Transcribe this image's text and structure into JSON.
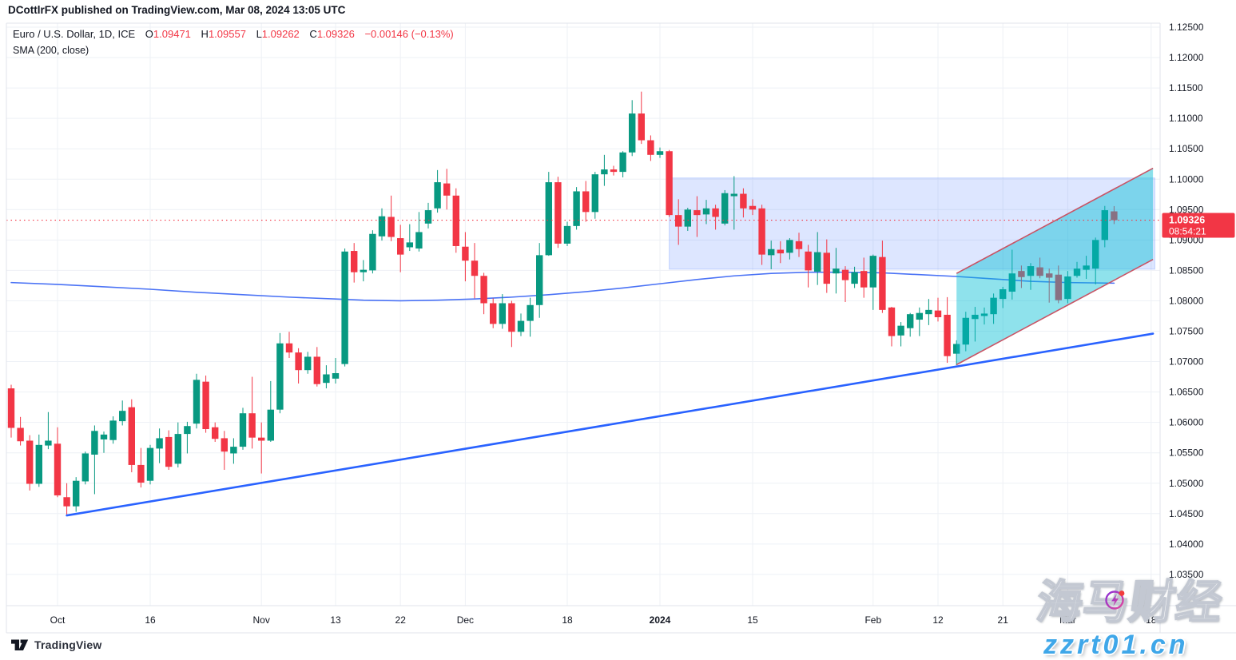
{
  "header": {
    "publish_line": "DCottlrFX published on TradingView.com, Mar 08, 2024 13:05 UTC"
  },
  "legend": {
    "symbol": "Euro / U.S. Dollar, 1D, ICE",
    "o_label": "O",
    "o_value": "1.09471",
    "h_label": "H",
    "h_value": "1.09557",
    "l_label": "L",
    "l_value": "1.09262",
    "c_label": "C",
    "c_value": "1.09326",
    "change": "−0.00146 (−0.13%)",
    "indicator": "SMA (200, close)"
  },
  "footer": {
    "brand": "TradingView"
  },
  "watermark": {
    "cn": "海马财经",
    "url": "zzrt01.cn",
    "icon": "lightning-bolt-icon"
  },
  "colors": {
    "up": "#089981",
    "down": "#f23645",
    "accent_red": "#f23645",
    "trendline_blue": "#2962ff",
    "sma_blue": "#4a72f5",
    "grid": "#eef1f6",
    "frame": "#e0e3eb",
    "text": "#131722",
    "rect_fill": "rgba(41,98,255,0.16)",
    "rect_stroke": "rgba(41,98,255,0.22)",
    "channel_fill": "rgba(0,188,212,0.44)",
    "channel_border": "#c95364"
  },
  "price_axis": {
    "ticks": [
      "1.12500",
      "1.12000",
      "1.11500",
      "1.11000",
      "1.10500",
      "1.10000",
      "1.09500",
      "1.09000",
      "1.08500",
      "1.08000",
      "1.07500",
      "1.07000",
      "1.06500",
      "1.06000",
      "1.05500",
      "1.05000",
      "1.04500",
      "1.04000",
      "1.03500"
    ],
    "badge": {
      "price": "1.09326",
      "countdown": "08:54:21"
    }
  },
  "time_axis": {
    "labels": [
      {
        "text": "Oct",
        "i": 5,
        "bold": false
      },
      {
        "text": "16",
        "i": 15,
        "bold": false
      },
      {
        "text": "Nov",
        "i": 27,
        "bold": false
      },
      {
        "text": "13",
        "i": 35,
        "bold": false
      },
      {
        "text": "22",
        "i": 42,
        "bold": false
      },
      {
        "text": "Dec",
        "i": 49,
        "bold": false
      },
      {
        "text": "18",
        "i": 60,
        "bold": false
      },
      {
        "text": "2024",
        "i": 70,
        "bold": true
      },
      {
        "text": "15",
        "i": 80,
        "bold": false
      },
      {
        "text": "Feb",
        "i": 93,
        "bold": false
      },
      {
        "text": "12",
        "i": 100,
        "bold": false
      },
      {
        "text": "21",
        "i": 107,
        "bold": false
      },
      {
        "text": "Mar",
        "i": 114,
        "bold": false
      },
      {
        "text": "18",
        "i": 123,
        "bold": false
      }
    ]
  },
  "chart_data": {
    "type": "candlestick",
    "title": "Euro / U.S. Dollar, 1D, ICE",
    "interval": "1D",
    "last_price": 1.09326,
    "ohlc_order": [
      "open",
      "high",
      "low",
      "close"
    ],
    "ylim": [
      1.03,
      1.13
    ],
    "grid": true,
    "candles": [
      [
        1.0656,
        1.0662,
        1.0575,
        1.0591
      ],
      [
        1.0591,
        1.0609,
        1.0562,
        1.0569
      ],
      [
        1.057,
        1.0579,
        1.0488,
        1.0499
      ],
      [
        1.0499,
        1.058,
        1.0494,
        1.0563
      ],
      [
        1.0562,
        1.0617,
        1.0556,
        1.057
      ],
      [
        1.0565,
        1.0592,
        1.0477,
        1.048
      ],
      [
        1.0477,
        1.05,
        1.0447,
        1.0462
      ],
      [
        1.0462,
        1.051,
        1.0453,
        1.0504
      ],
      [
        1.0503,
        1.0552,
        1.0498,
        1.0549
      ],
      [
        1.0547,
        1.0595,
        1.0482,
        1.0586
      ],
      [
        1.0572,
        1.0585,
        1.055,
        1.058
      ],
      [
        1.0571,
        1.061,
        1.0565,
        1.0603
      ],
      [
        1.0602,
        1.0636,
        1.0595,
        1.0619
      ],
      [
        1.0625,
        1.0638,
        1.0518,
        1.053
      ],
      [
        1.053,
        1.0558,
        1.0493,
        1.0501
      ],
      [
        1.0504,
        1.0563,
        1.0498,
        1.0558
      ],
      [
        1.0557,
        1.059,
        1.0533,
        1.0574
      ],
      [
        1.0576,
        1.0587,
        1.0522,
        1.0527
      ],
      [
        1.0532,
        1.06,
        1.0526,
        1.0581
      ],
      [
        1.0581,
        1.0601,
        1.0549,
        1.0594
      ],
      [
        1.0598,
        1.068,
        1.059,
        1.067
      ],
      [
        1.0667,
        1.0677,
        1.0583,
        1.0589
      ],
      [
        1.0592,
        1.06,
        1.0568,
        1.0573
      ],
      [
        1.0574,
        1.0586,
        1.0522,
        1.0552
      ],
      [
        1.0549,
        1.0574,
        1.0532,
        1.056
      ],
      [
        1.056,
        1.0624,
        1.0555,
        1.0615
      ],
      [
        1.0615,
        1.0675,
        1.0557,
        1.0575
      ],
      [
        1.0575,
        1.06,
        1.0516,
        1.057
      ],
      [
        1.057,
        1.0668,
        1.0568,
        1.0621
      ],
      [
        1.0621,
        1.0747,
        1.0615,
        1.073
      ],
      [
        1.073,
        1.0749,
        1.0706,
        1.0715
      ],
      [
        1.0715,
        1.0722,
        1.0664,
        1.0686
      ],
      [
        1.0686,
        1.0716,
        1.068,
        1.0708
      ],
      [
        1.0708,
        1.0724,
        1.0659,
        1.0663
      ],
      [
        1.0665,
        1.0694,
        1.0656,
        1.0679
      ],
      [
        1.0672,
        1.0706,
        1.0664,
        1.0681
      ],
      [
        1.0696,
        1.0886,
        1.0692,
        1.0881
      ],
      [
        1.0882,
        1.0895,
        1.083,
        1.0847
      ],
      [
        1.0847,
        1.0867,
        1.0832,
        1.0851
      ],
      [
        1.085,
        1.0916,
        1.0845,
        1.091
      ],
      [
        1.0906,
        1.0952,
        1.0899,
        1.0939
      ],
      [
        1.0938,
        1.0973,
        1.0898,
        1.0905
      ],
      [
        1.0903,
        1.0925,
        1.0847,
        1.0876
      ],
      [
        1.0888,
        1.0926,
        1.0882,
        1.0896
      ],
      [
        1.0886,
        1.0946,
        1.0881,
        1.0913
      ],
      [
        1.0927,
        1.0961,
        1.0919,
        1.0949
      ],
      [
        1.0952,
        1.1015,
        1.0945,
        1.0995
      ],
      [
        1.0993,
        1.1017,
        1.095,
        1.0973
      ],
      [
        1.0973,
        1.0985,
        1.0879,
        1.089
      ],
      [
        1.0889,
        1.0913,
        1.0832,
        1.0866
      ],
      [
        1.0866,
        1.0895,
        1.0804,
        1.0841
      ],
      [
        1.0841,
        1.0846,
        1.0778,
        1.0796
      ],
      [
        1.0796,
        1.0804,
        1.0755,
        1.0762
      ],
      [
        1.0762,
        1.0811,
        1.0754,
        1.0796
      ],
      [
        1.0796,
        1.08,
        1.0724,
        1.0749
      ],
      [
        1.0749,
        1.0779,
        1.0742,
        1.0767
      ],
      [
        1.0767,
        1.0805,
        1.0741,
        1.0793
      ],
      [
        1.0793,
        1.0895,
        1.0772,
        1.0875
      ],
      [
        1.0875,
        1.1012,
        1.0874,
        1.0995
      ],
      [
        1.0995,
        1.1004,
        1.0887,
        1.0894
      ],
      [
        1.0894,
        1.093,
        1.089,
        1.0923
      ],
      [
        1.0923,
        1.0987,
        1.0917,
        1.098
      ],
      [
        1.098,
        1.0997,
        1.093,
        1.0946
      ],
      [
        1.0946,
        1.1012,
        1.0935,
        1.1008
      ],
      [
        1.1008,
        1.104,
        1.0989,
        1.1016
      ],
      [
        1.1016,
        1.1022,
        1.1006,
        1.1012
      ],
      [
        1.1012,
        1.1046,
        1.1003,
        1.1044
      ],
      [
        1.1044,
        1.113,
        1.1038,
        1.1108
      ],
      [
        1.1108,
        1.1144,
        1.1058,
        1.1064
      ],
      [
        1.1064,
        1.1072,
        1.103,
        1.104
      ],
      [
        1.104,
        1.1052,
        1.1035,
        1.1046
      ],
      [
        1.1046,
        1.1048,
        1.0938,
        1.0941
      ],
      [
        1.0941,
        1.0967,
        1.0892,
        1.0922
      ],
      [
        1.0922,
        1.0953,
        1.0915,
        1.095
      ],
      [
        1.0949,
        1.0972,
        1.0905,
        1.0941
      ],
      [
        1.0942,
        1.0966,
        1.0926,
        1.0952
      ],
      [
        1.0952,
        1.0958,
        1.0917,
        1.0938
      ],
      [
        1.0927,
        1.0982,
        1.0924,
        1.0977
      ],
      [
        1.0972,
        1.1005,
        1.0917,
        1.0976
      ],
      [
        1.0976,
        1.0985,
        1.0937,
        1.0952
      ],
      [
        1.0956,
        1.0967,
        1.0941,
        1.095
      ],
      [
        1.0952,
        1.0958,
        1.0859,
        1.0876
      ],
      [
        1.0875,
        1.0899,
        1.0852,
        1.0885
      ],
      [
        1.0884,
        1.0898,
        1.0862,
        1.0878
      ],
      [
        1.0879,
        1.0903,
        1.0868,
        1.09
      ],
      [
        1.0898,
        1.0912,
        1.0872,
        1.0885
      ],
      [
        1.0881,
        1.0892,
        1.0822,
        1.085
      ],
      [
        1.0848,
        1.0913,
        1.0826,
        1.088
      ],
      [
        1.0879,
        1.0901,
        1.0813,
        1.0828
      ],
      [
        1.0845,
        1.0887,
        1.0812,
        1.0853
      ],
      [
        1.0851,
        1.0857,
        1.0798,
        1.0834
      ],
      [
        1.0828,
        1.0856,
        1.0821,
        1.0847
      ],
      [
        1.0849,
        1.0871,
        1.0805,
        1.0822
      ],
      [
        1.0822,
        1.0876,
        1.0785,
        1.0874
      ],
      [
        1.0872,
        1.0899,
        1.078,
        1.0785
      ],
      [
        1.0789,
        1.079,
        1.0725,
        1.0742
      ],
      [
        1.0743,
        1.0765,
        1.0725,
        1.0759
      ],
      [
        1.0755,
        1.078,
        1.0741,
        1.0778
      ],
      [
        1.0769,
        1.0789,
        1.0742,
        1.078
      ],
      [
        1.0778,
        1.0803,
        1.076,
        1.0785
      ],
      [
        1.0784,
        1.0805,
        1.0766,
        1.0773
      ],
      [
        1.0777,
        1.0806,
        1.0698,
        1.0709
      ],
      [
        1.0713,
        1.0735,
        1.0694,
        1.0729
      ],
      [
        1.0728,
        1.0782,
        1.0717,
        1.0772
      ],
      [
        1.077,
        1.079,
        1.0733,
        1.0777
      ],
      [
        1.0775,
        1.0789,
        1.0761,
        1.0779
      ],
      [
        1.0778,
        1.0812,
        1.0762,
        1.0805
      ],
      [
        1.0803,
        1.0823,
        1.0788,
        1.0819
      ],
      [
        1.0815,
        1.0884,
        1.0802,
        1.0845
      ],
      [
        1.0849,
        1.0858,
        1.0821,
        1.0839
      ],
      [
        1.0841,
        1.0862,
        1.0818,
        1.0857
      ],
      [
        1.0855,
        1.0871,
        1.0837,
        1.0841
      ],
      [
        1.0845,
        1.0853,
        1.0797,
        1.0838
      ],
      [
        1.0843,
        1.0858,
        1.0796,
        1.0801
      ],
      [
        1.0803,
        1.0849,
        1.0796,
        1.084
      ],
      [
        1.0841,
        1.0864,
        1.0838,
        1.0853
      ],
      [
        1.0851,
        1.0874,
        1.0836,
        1.0858
      ],
      [
        1.0853,
        1.0904,
        1.0827,
        1.09
      ],
      [
        1.09,
        1.0956,
        1.0888,
        1.0949
      ],
      [
        1.09471,
        1.09557,
        1.09262,
        1.09326
      ]
    ],
    "sma_200": [
      [
        0,
        1.083
      ],
      [
        5,
        1.0827
      ],
      [
        10,
        1.0823
      ],
      [
        15,
        1.0819
      ],
      [
        20,
        1.0814
      ],
      [
        25,
        1.081
      ],
      [
        30,
        1.0806
      ],
      [
        35,
        1.0803
      ],
      [
        38,
        1.0801
      ],
      [
        42,
        1.08
      ],
      [
        46,
        1.0801
      ],
      [
        50,
        1.0803
      ],
      [
        54,
        1.0806
      ],
      [
        58,
        1.081
      ],
      [
        62,
        1.0815
      ],
      [
        66,
        1.0821
      ],
      [
        70,
        1.0828
      ],
      [
        74,
        1.0835
      ],
      [
        78,
        1.0841
      ],
      [
        82,
        1.0845
      ],
      [
        86,
        1.0847
      ],
      [
        90,
        1.0847
      ],
      [
        94,
        1.0846
      ],
      [
        98,
        1.0843
      ],
      [
        102,
        1.084
      ],
      [
        106,
        1.0836
      ],
      [
        110,
        1.0832
      ],
      [
        114,
        1.083
      ],
      [
        119,
        1.0829
      ]
    ],
    "drawings": {
      "trendline": {
        "from": [
          6,
          1.0447
        ],
        "to": [
          123.2,
          1.0746
        ]
      },
      "rectangle": {
        "i_start": 71,
        "i_end": 123.4,
        "price_top": 1.1002,
        "price_bottom": 1.0852
      },
      "channel": {
        "i_start": 102,
        "i_end": 123.2,
        "lower_start": 1.0695,
        "lower_end": 1.0868,
        "upper_start": 1.0845,
        "upper_end": 1.1018
      }
    }
  }
}
